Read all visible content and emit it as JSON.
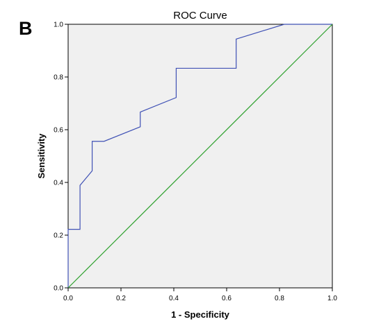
{
  "panel_label": "B",
  "chart_data": {
    "type": "line",
    "title": "ROC Curve",
    "xlabel": "1 - Specificity",
    "ylabel": "Sensitivity",
    "xlim": [
      0,
      1
    ],
    "ylim": [
      0,
      1
    ],
    "x_ticks": [
      "0.0",
      "0.2",
      "0.4",
      "0.6",
      "0.8",
      "1.0"
    ],
    "y_ticks": [
      "0.0",
      "0.2",
      "0.4",
      "0.6",
      "0.8",
      "1.0"
    ],
    "grid": false,
    "plot_background": "#f0f0f0",
    "series": [
      {
        "color": "#3f51b5",
        "style": "step",
        "x": [
          0,
          0,
          0.045,
          0.045,
          0.091,
          0.091,
          0.136,
          0.273,
          0.273,
          0.409,
          0.409,
          0.636,
          0.636,
          0.818,
          1.0
        ],
        "y": [
          0,
          0.222,
          0.222,
          0.389,
          0.444,
          0.556,
          0.556,
          0.611,
          0.667,
          0.722,
          0.833,
          0.833,
          0.944,
          1.0,
          1.0
        ]
      },
      {
        "color": "#2ca02c",
        "style": "reference",
        "x": [
          0,
          1
        ],
        "y": [
          0,
          1
        ]
      }
    ]
  }
}
